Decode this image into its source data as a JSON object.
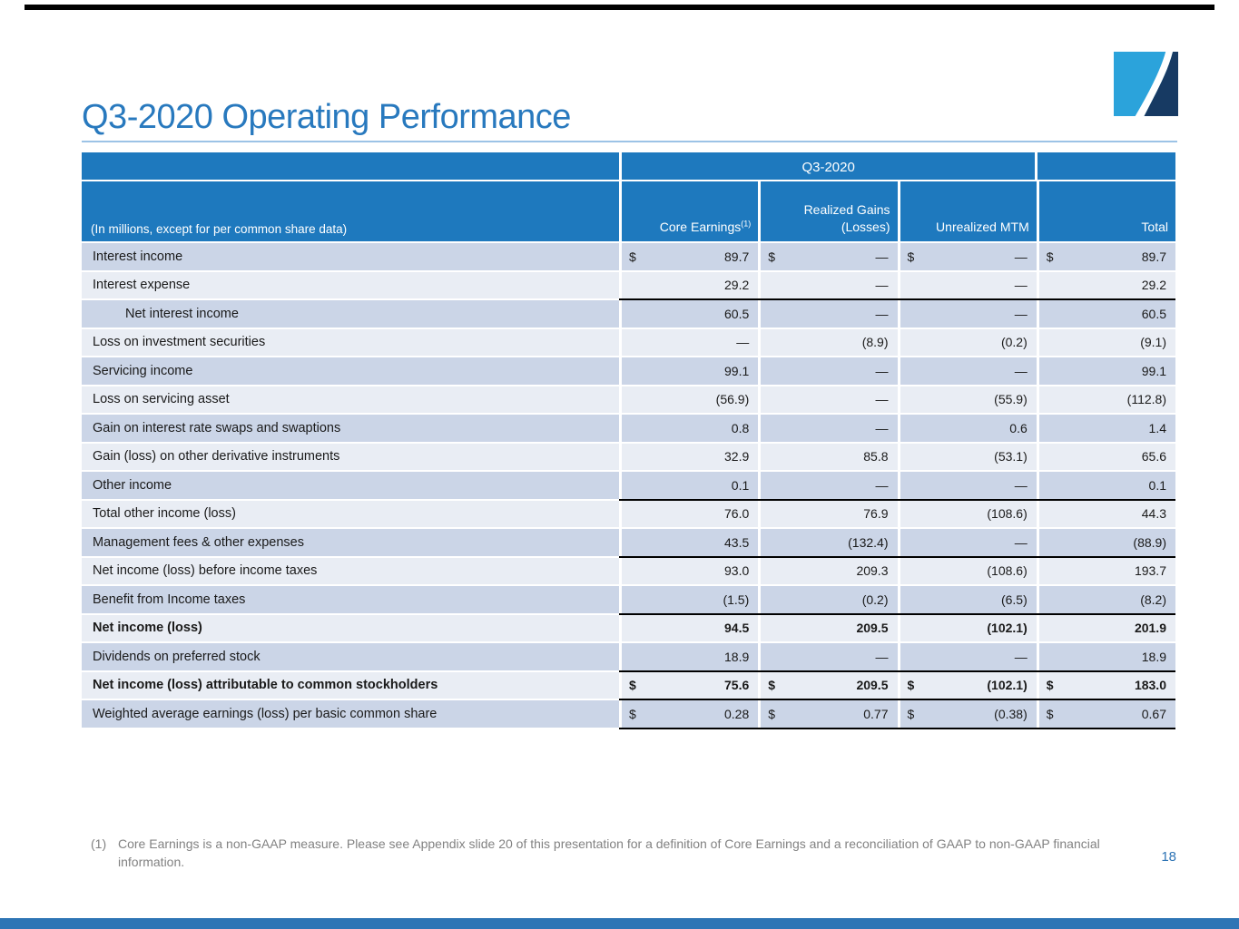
{
  "slide": {
    "title": "Q3-2020 Operating Performance",
    "page_number": "18",
    "footnote_marker": "(1)",
    "footnote_text": "Core Earnings is a non-GAAP measure. Please see Appendix slide 20 of this presentation for a definition of Core Earnings and a reconciliation of GAAP to non-GAAP financial information."
  },
  "colors": {
    "header_blue": "#1e79be",
    "title_blue": "#2879be",
    "row_dark": "#cbd5e7",
    "row_light": "#e9edf4",
    "underline_black": "#000000",
    "rule_light_blue": "#9cc3e6",
    "footer_bar_blue": "#2e75b5",
    "logo_light_blue": "#2ba3db",
    "logo_navy": "#173a63",
    "footnote_gray": "#828282"
  },
  "table": {
    "group_header": "Q3-2020",
    "left_header": "(In millions, except for per common share data)",
    "dollar_symbol": "$",
    "columns": [
      {
        "label": "Core Earnings",
        "sup": "(1)"
      },
      {
        "label": "Realized Gains (Losses)",
        "sup": ""
      },
      {
        "label": "Unrealized MTM",
        "sup": ""
      },
      {
        "label": "Total",
        "sup": ""
      }
    ],
    "rows": [
      {
        "label": "Interest income",
        "indent": false,
        "bold": false,
        "dollar": true,
        "underline": false,
        "values": [
          "89.7",
          "—",
          "—",
          "89.7"
        ]
      },
      {
        "label": "Interest expense",
        "indent": false,
        "bold": false,
        "dollar": false,
        "underline": true,
        "values": [
          "29.2",
          "—",
          "—",
          "29.2"
        ]
      },
      {
        "label": "Net interest income",
        "indent": true,
        "bold": false,
        "dollar": false,
        "underline": false,
        "values": [
          "60.5",
          "—",
          "—",
          "60.5"
        ]
      },
      {
        "label": "Loss on investment securities",
        "indent": false,
        "bold": false,
        "dollar": false,
        "underline": false,
        "values": [
          "—",
          "(8.9)",
          "(0.2)",
          "(9.1)"
        ]
      },
      {
        "label": "Servicing income",
        "indent": false,
        "bold": false,
        "dollar": false,
        "underline": false,
        "values": [
          "99.1",
          "—",
          "—",
          "99.1"
        ]
      },
      {
        "label": "Loss on servicing asset",
        "indent": false,
        "bold": false,
        "dollar": false,
        "underline": false,
        "values": [
          "(56.9)",
          "—",
          "(55.9)",
          "(112.8)"
        ]
      },
      {
        "label": "Gain on interest rate swaps and swaptions",
        "indent": false,
        "bold": false,
        "dollar": false,
        "underline": false,
        "values": [
          "0.8",
          "—",
          "0.6",
          "1.4"
        ]
      },
      {
        "label": "Gain (loss) on other derivative instruments",
        "indent": false,
        "bold": false,
        "dollar": false,
        "underline": false,
        "values": [
          "32.9",
          "85.8",
          "(53.1)",
          "65.6"
        ]
      },
      {
        "label": "Other income",
        "indent": false,
        "bold": false,
        "dollar": false,
        "underline": true,
        "values": [
          "0.1",
          "—",
          "—",
          "0.1"
        ]
      },
      {
        "label": "Total other income (loss)",
        "indent": false,
        "bold": false,
        "dollar": false,
        "underline": false,
        "values": [
          "76.0",
          "76.9",
          "(108.6)",
          "44.3"
        ]
      },
      {
        "label": "Management fees & other expenses",
        "indent": false,
        "bold": false,
        "dollar": false,
        "underline": true,
        "values": [
          "43.5",
          "(132.4)",
          "—",
          "(88.9)"
        ]
      },
      {
        "label": "Net income (loss) before income taxes",
        "indent": false,
        "bold": false,
        "dollar": false,
        "underline": false,
        "values": [
          "93.0",
          "209.3",
          "(108.6)",
          "193.7"
        ]
      },
      {
        "label": "Benefit from Income taxes",
        "indent": false,
        "bold": false,
        "dollar": false,
        "underline": true,
        "values": [
          "(1.5)",
          "(0.2)",
          "(6.5)",
          "(8.2)"
        ]
      },
      {
        "label": "Net income (loss)",
        "indent": false,
        "bold": true,
        "dollar": false,
        "underline": false,
        "values": [
          "94.5",
          "209.5",
          "(102.1)",
          "201.9"
        ]
      },
      {
        "label": "Dividends on preferred stock",
        "indent": false,
        "bold": false,
        "dollar": false,
        "underline": true,
        "values": [
          "18.9",
          "—",
          "—",
          "18.9"
        ]
      },
      {
        "label": "Net income (loss) attributable to common stockholders",
        "indent": false,
        "bold": true,
        "dollar": true,
        "underline": true,
        "values": [
          "75.6",
          "209.5",
          "(102.1)",
          "183.0"
        ]
      },
      {
        "label": "Weighted average earnings (loss) per basic common share",
        "indent": false,
        "bold": false,
        "dollar": true,
        "underline": true,
        "values": [
          "0.28",
          "0.77",
          "(0.38)",
          "0.67"
        ]
      }
    ]
  }
}
